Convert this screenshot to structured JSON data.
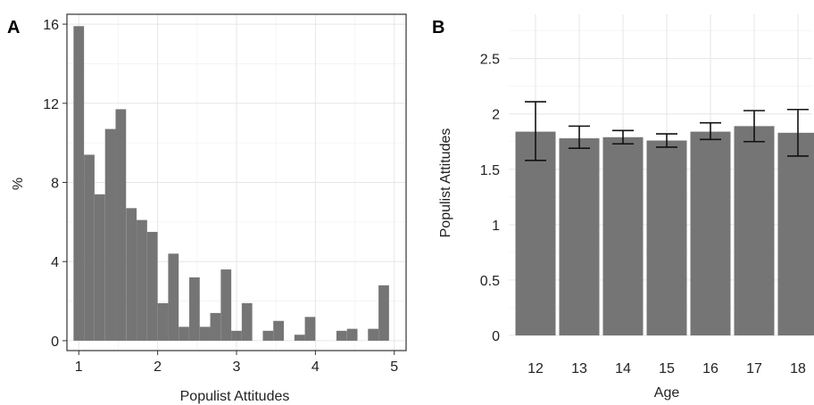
{
  "chart_data": [
    {
      "panel_label": "A",
      "type": "bar",
      "subtype": "histogram",
      "xlabel": "Populist Attitudes",
      "ylabel": "%",
      "xlim": [
        0.85,
        5.15
      ],
      "ylim": [
        -0.5,
        16.5
      ],
      "xticks": [
        1,
        2,
        3,
        4,
        5
      ],
      "yticks": [
        0,
        4,
        8,
        12,
        16
      ],
      "bin_width": 0.133,
      "bar_color": "#757575",
      "grid": true,
      "x": [
        1.0,
        1.133,
        1.267,
        1.4,
        1.533,
        1.667,
        1.8,
        1.933,
        2.067,
        2.2,
        2.333,
        2.467,
        2.6,
        2.733,
        2.867,
        3.0,
        3.133,
        3.267,
        3.4,
        3.533,
        3.667,
        3.8,
        3.933,
        4.067,
        4.2,
        4.333,
        4.467,
        4.6,
        4.733,
        4.867
      ],
      "values": [
        15.9,
        9.4,
        7.4,
        10.7,
        11.7,
        6.7,
        6.1,
        5.5,
        1.9,
        4.4,
        0.7,
        3.2,
        0.7,
        1.4,
        3.6,
        0.5,
        1.9,
        0.0,
        0.5,
        1.0,
        0.0,
        0.3,
        1.2,
        0.0,
        0.0,
        0.5,
        0.6,
        0.0,
        0.6,
        2.8
      ]
    },
    {
      "panel_label": "B",
      "type": "bar",
      "xlabel": "Age",
      "ylabel": "Populist Attitudes",
      "categories": [
        "12",
        "13",
        "14",
        "15",
        "16",
        "17",
        "18"
      ],
      "values": [
        1.84,
        1.78,
        1.79,
        1.76,
        1.84,
        1.89,
        1.83
      ],
      "error_low": [
        1.58,
        1.69,
        1.73,
        1.7,
        1.77,
        1.75,
        1.62
      ],
      "error_high": [
        2.11,
        1.89,
        1.85,
        1.82,
        1.92,
        2.03,
        2.04
      ],
      "ylim": [
        0,
        2.9
      ],
      "yticks": [
        "0",
        "0.5",
        "1",
        "1.5",
        "2",
        "2.5"
      ],
      "ytick_values": [
        0,
        0.5,
        1,
        1.5,
        2,
        2.5
      ],
      "bar_color": "#757575",
      "grid": true
    }
  ]
}
